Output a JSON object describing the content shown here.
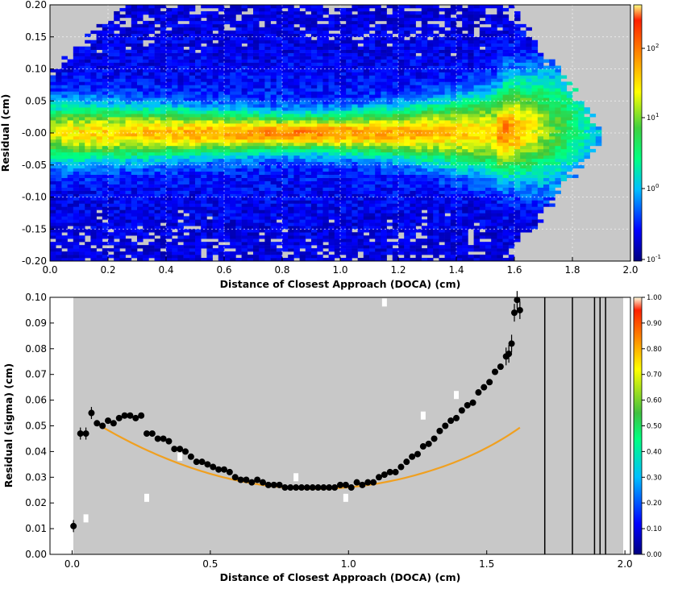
{
  "chart_data": [
    {
      "type": "heatmap",
      "xlabel": "Distance of Closest Approach (DOCA) (cm)",
      "ylabel": "Residual (cm)",
      "xlim": [
        0.0,
        2.0
      ],
      "ylim": [
        -0.2,
        0.2
      ],
      "xticks": [
        "0.0",
        "0.2",
        "0.4",
        "0.6",
        "0.8",
        "1.0",
        "1.2",
        "1.4",
        "1.6",
        "1.8",
        "2.0"
      ],
      "yticks": [
        "-0.20",
        "-0.15",
        "-0.10",
        "-0.05",
        "-0.00",
        "0.05",
        "0.10",
        "0.15",
        "0.20"
      ],
      "colorbar": {
        "scale": "log",
        "ticks": [
          "10",
          "10",
          "10",
          "10"
        ],
        "exponents": [
          "2",
          "1",
          "0",
          "-1"
        ]
      },
      "background": "#c8c8c8",
      "grid": true,
      "band": {
        "center": 0.0,
        "half_width_start": 0.06,
        "half_width_min": 0.035,
        "half_width_end": 0.09,
        "peak_density_x": 0.9,
        "edge_x": 1.62
      }
    },
    {
      "type": "scatter",
      "xlabel": "Distance of Closest Approach (DOCA) (cm)",
      "ylabel": "Residual (sigma) (cm)",
      "xlim": [
        -0.08,
        2.02
      ],
      "ylim": [
        0.0,
        0.1
      ],
      "xticks": [
        "0.0",
        "0.5",
        "1.0",
        "1.5",
        "2.0"
      ],
      "yticks": [
        "0.00",
        "0.01",
        "0.02",
        "0.03",
        "0.04",
        "0.05",
        "0.06",
        "0.07",
        "0.08",
        "0.09",
        "0.10"
      ],
      "colorbar": {
        "ticks": [
          "0.00",
          "0.10",
          "0.20",
          "0.30",
          "0.40",
          "0.50",
          "0.60",
          "0.70",
          "0.80",
          "0.90",
          "1.00"
        ]
      },
      "background": "#c8c8c8",
      "points": [
        [
          0.005,
          0.011
        ],
        [
          0.03,
          0.047
        ],
        [
          0.05,
          0.047
        ],
        [
          0.07,
          0.055
        ],
        [
          0.09,
          0.051
        ],
        [
          0.11,
          0.05
        ],
        [
          0.13,
          0.052
        ],
        [
          0.15,
          0.051
        ],
        [
          0.17,
          0.053
        ],
        [
          0.19,
          0.054
        ],
        [
          0.21,
          0.054
        ],
        [
          0.23,
          0.053
        ],
        [
          0.25,
          0.054
        ],
        [
          0.27,
          0.047
        ],
        [
          0.29,
          0.047
        ],
        [
          0.31,
          0.045
        ],
        [
          0.33,
          0.045
        ],
        [
          0.35,
          0.044
        ],
        [
          0.37,
          0.041
        ],
        [
          0.39,
          0.041
        ],
        [
          0.41,
          0.04
        ],
        [
          0.43,
          0.038
        ],
        [
          0.45,
          0.036
        ],
        [
          0.47,
          0.036
        ],
        [
          0.49,
          0.035
        ],
        [
          0.51,
          0.034
        ],
        [
          0.53,
          0.033
        ],
        [
          0.55,
          0.033
        ],
        [
          0.57,
          0.032
        ],
        [
          0.59,
          0.03
        ],
        [
          0.61,
          0.029
        ],
        [
          0.63,
          0.029
        ],
        [
          0.65,
          0.028
        ],
        [
          0.67,
          0.029
        ],
        [
          0.69,
          0.028
        ],
        [
          0.71,
          0.027
        ],
        [
          0.73,
          0.027
        ],
        [
          0.75,
          0.027
        ],
        [
          0.77,
          0.026
        ],
        [
          0.79,
          0.026
        ],
        [
          0.81,
          0.026
        ],
        [
          0.83,
          0.026
        ],
        [
          0.85,
          0.026
        ],
        [
          0.87,
          0.026
        ],
        [
          0.89,
          0.026
        ],
        [
          0.91,
          0.026
        ],
        [
          0.93,
          0.026
        ],
        [
          0.95,
          0.026
        ],
        [
          0.97,
          0.027
        ],
        [
          0.99,
          0.027
        ],
        [
          1.01,
          0.026
        ],
        [
          1.03,
          0.028
        ],
        [
          1.05,
          0.027
        ],
        [
          1.07,
          0.028
        ],
        [
          1.09,
          0.028
        ],
        [
          1.11,
          0.03
        ],
        [
          1.13,
          0.031
        ],
        [
          1.15,
          0.032
        ],
        [
          1.17,
          0.032
        ],
        [
          1.19,
          0.034
        ],
        [
          1.21,
          0.036
        ],
        [
          1.23,
          0.038
        ],
        [
          1.25,
          0.039
        ],
        [
          1.27,
          0.042
        ],
        [
          1.29,
          0.043
        ],
        [
          1.31,
          0.045
        ],
        [
          1.33,
          0.048
        ],
        [
          1.35,
          0.05
        ],
        [
          1.37,
          0.052
        ],
        [
          1.39,
          0.053
        ],
        [
          1.41,
          0.056
        ],
        [
          1.43,
          0.058
        ],
        [
          1.45,
          0.059
        ],
        [
          1.47,
          0.063
        ],
        [
          1.49,
          0.065
        ],
        [
          1.51,
          0.067
        ],
        [
          1.53,
          0.071
        ],
        [
          1.55,
          0.073
        ],
        [
          1.57,
          0.077
        ],
        [
          1.58,
          0.078
        ],
        [
          1.59,
          0.082
        ],
        [
          1.6,
          0.094
        ],
        [
          1.61,
          0.099
        ],
        [
          1.62,
          0.095
        ]
      ],
      "outliers": [
        [
          0.05,
          0.014
        ],
        [
          0.27,
          0.022
        ],
        [
          0.39,
          0.038
        ],
        [
          0.81,
          0.03
        ],
        [
          0.99,
          0.022
        ],
        [
          1.13,
          0.098
        ],
        [
          1.27,
          0.054
        ],
        [
          1.39,
          0.062
        ]
      ],
      "fit": {
        "a": 0.0255,
        "b": 0.0405,
        "x0": 0.88,
        "xrange": [
          0.1,
          1.62
        ],
        "color": "#f0a020"
      },
      "vertical_lines": [
        1.71,
        1.81,
        1.89,
        1.91,
        1.93
      ]
    }
  ]
}
